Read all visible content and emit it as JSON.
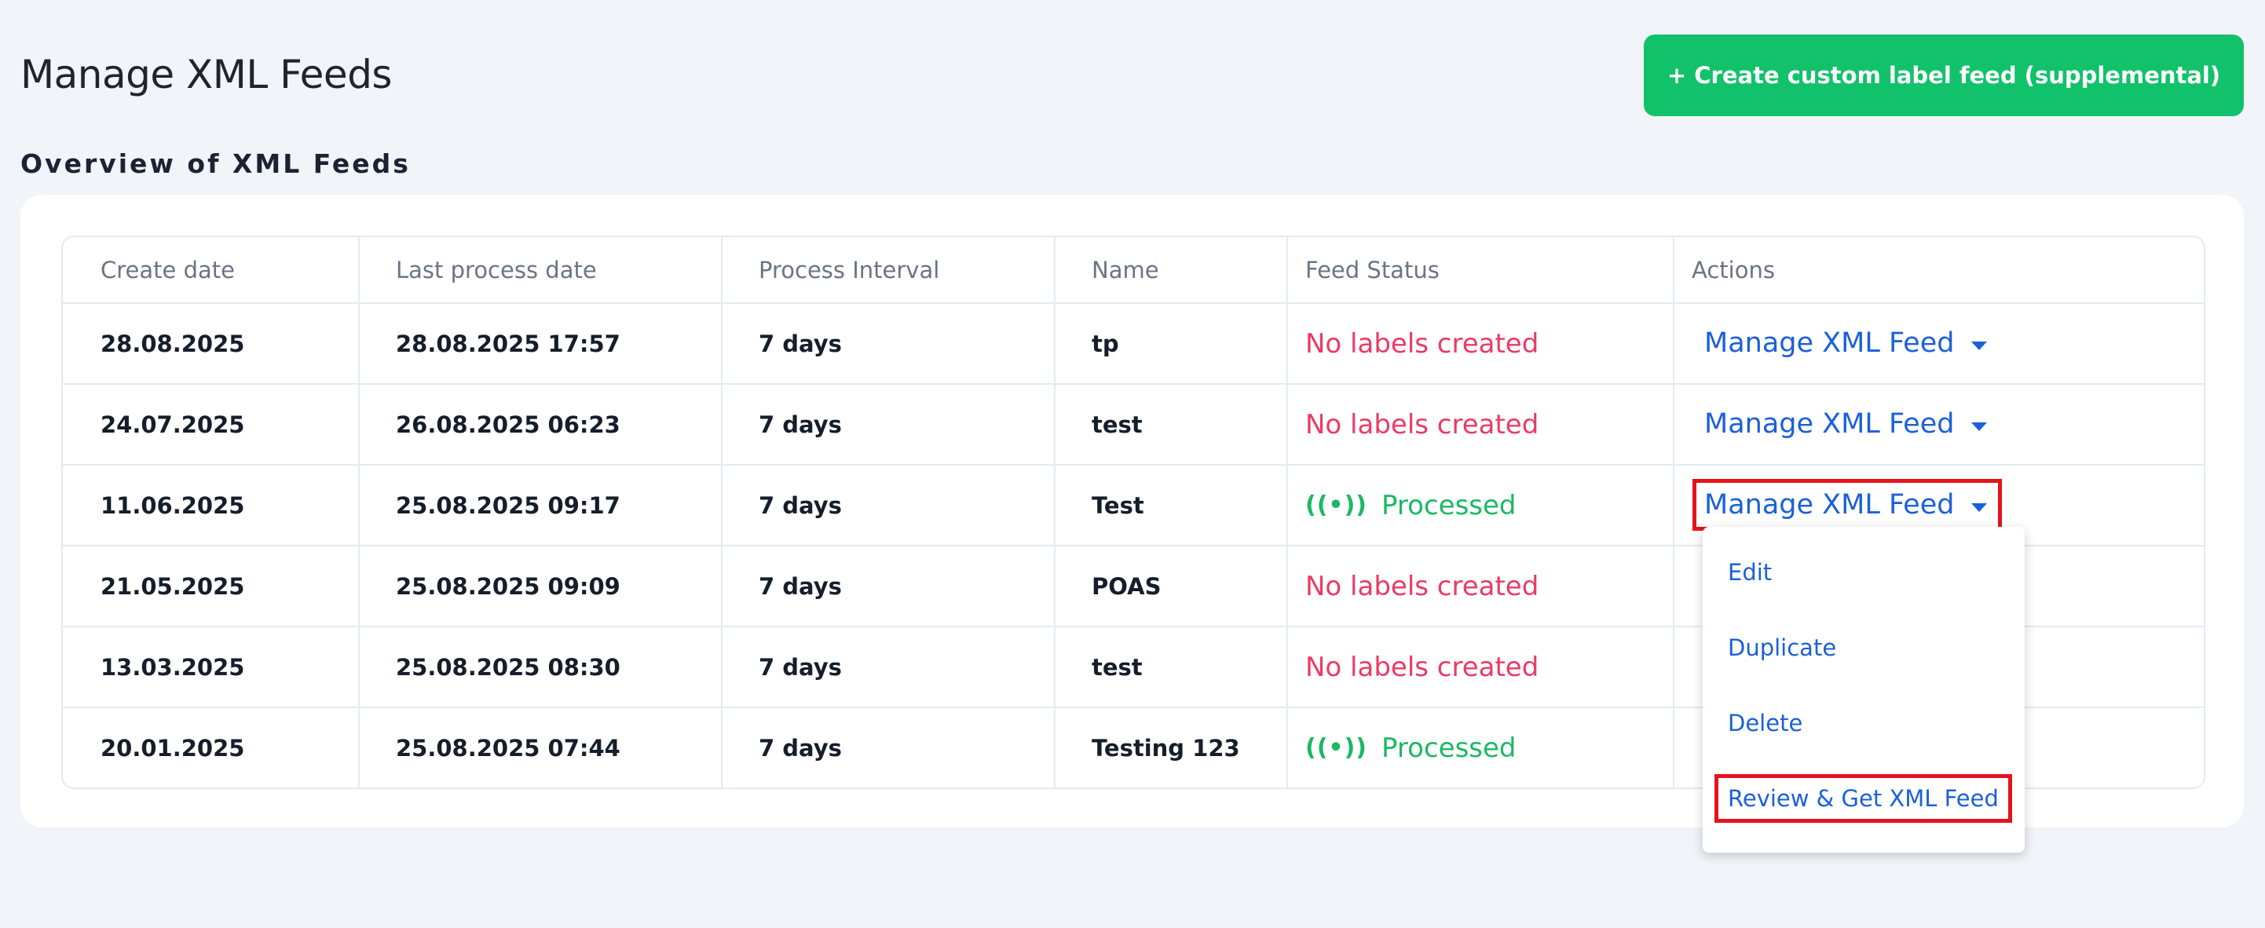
{
  "header": {
    "title": "Manage XML Feeds",
    "create_button_label": "+ Create custom label feed (supplemental)"
  },
  "overview": {
    "title": "Overview of XML Feeds"
  },
  "table": {
    "columns": [
      "Create date",
      "Last process date",
      "Process Interval",
      "Name",
      "Feed Status",
      "Actions"
    ],
    "rows": [
      {
        "create_date": "28.08.2025",
        "last_process_date": "28.08.2025 17:57",
        "interval": "7 days",
        "name": "tp",
        "status": "No labels created",
        "status_type": "none",
        "action": "Manage XML Feed"
      },
      {
        "create_date": "24.07.2025",
        "last_process_date": "26.08.2025 06:23",
        "interval": "7 days",
        "name": "test",
        "status": "No labels created",
        "status_type": "none",
        "action": "Manage XML Feed"
      },
      {
        "create_date": "11.06.2025",
        "last_process_date": "25.08.2025 09:17",
        "interval": "7 days",
        "name": "Test",
        "status": "Processed",
        "status_type": "processed",
        "action": "Manage XML Feed"
      },
      {
        "create_date": "21.05.2025",
        "last_process_date": "25.08.2025 09:09",
        "interval": "7 days",
        "name": "POAS",
        "status": "No labels created",
        "status_type": "none",
        "action": ""
      },
      {
        "create_date": "13.03.2025",
        "last_process_date": "25.08.2025 08:30",
        "interval": "7 days",
        "name": "test",
        "status": "No labels created",
        "status_type": "none",
        "action": ""
      },
      {
        "create_date": "20.01.2025",
        "last_process_date": "25.08.2025 07:44",
        "interval": "7 days",
        "name": "Testing 123",
        "status": "Processed",
        "status_type": "processed",
        "action": ""
      }
    ]
  },
  "dropdown": {
    "items": [
      "Edit",
      "Duplicate",
      "Delete",
      "Review & Get XML Feed"
    ]
  },
  "icons": {
    "processed_icon": "broadcast-icon",
    "caret_icon": "caret-down-icon"
  },
  "colors": {
    "accent_green": "#11c26a",
    "link_blue": "#1b60d8",
    "status_red": "#ec3a64",
    "status_green": "#1bb865",
    "highlight_red": "#e5131b"
  }
}
